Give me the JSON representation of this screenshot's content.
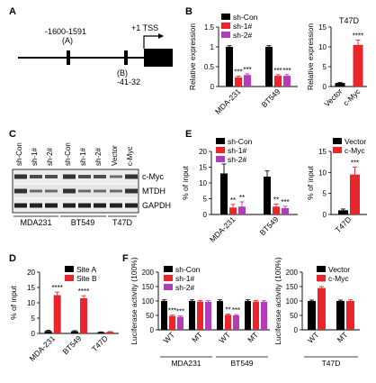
{
  "colors": {
    "black": "#000000",
    "red": "#e8262b",
    "purple": "#b33cb8",
    "gray": "#7f7f7f"
  },
  "panel_letters": [
    "A",
    "B",
    "C",
    "D",
    "E",
    "F"
  ],
  "diagram": {
    "site_a_pos": "-1600-1591",
    "site_a_label": "(A)",
    "site_b_label": "(B)",
    "site_b_pos": "-41-32",
    "tss_label": "+1 TSS"
  },
  "western": {
    "lane_labels": [
      "sh-Con",
      "sh-1#",
      "sh-2#",
      "sh-Con",
      "sh-1#",
      "sh-2#",
      "Vector",
      "c-Myc"
    ],
    "row_labels": [
      "c-Myc",
      "MTDH",
      "GAPDH"
    ],
    "group_labels": [
      "MDA231",
      "BT549",
      "T47D"
    ]
  },
  "chart_data": [
    {
      "id": "B-left",
      "type": "bar",
      "ylabel": "Relative expression",
      "ylim": [
        0,
        1.5
      ],
      "yticks": [
        0.0,
        0.5,
        1.0,
        1.5
      ],
      "categories": [
        "MDA-231",
        "BT549"
      ],
      "legend": [
        "sh-Con",
        "sh-1#",
        "sh-2#"
      ],
      "series": [
        {
          "name": "sh-Con",
          "color": "#000000",
          "values": [
            1.0,
            1.0
          ],
          "errors": [
            0.03,
            0.03
          ]
        },
        {
          "name": "sh-1#",
          "color": "#e8262b",
          "values": [
            0.23,
            0.27
          ],
          "errors": [
            0.03,
            0.03
          ]
        },
        {
          "name": "sh-2#",
          "color": "#b33cb8",
          "values": [
            0.29,
            0.27
          ],
          "errors": [
            0.03,
            0.03
          ]
        }
      ],
      "annotations": [
        [
          "",
          "***",
          "***"
        ],
        [
          "",
          "***",
          "***"
        ]
      ]
    },
    {
      "id": "B-right",
      "type": "bar",
      "title": "T47D",
      "ylabel": "Relative expression",
      "ylim": [
        0,
        15
      ],
      "yticks": [
        0,
        5,
        10,
        15
      ],
      "categories": [
        "Vector",
        "c-Myc"
      ],
      "values": [
        0.9,
        10.5
      ],
      "errors": [
        0.1,
        1.2
      ],
      "colors": [
        "#000000",
        "#e8262b"
      ],
      "annotations": [
        "",
        "****"
      ]
    },
    {
      "id": "E-left",
      "type": "bar",
      "ylabel": "% of input",
      "ylim": [
        0,
        20
      ],
      "yticks": [
        0,
        5,
        10,
        15,
        20
      ],
      "categories": [
        "MDA-231",
        "BT549"
      ],
      "legend": [
        "sh-Con",
        "sh-1#",
        "sh-2#"
      ],
      "series": [
        {
          "name": "sh-Con",
          "color": "#000000",
          "values": [
            13,
            12
          ],
          "errors": [
            3,
            1.8
          ]
        },
        {
          "name": "sh-1#",
          "color": "#e8262b",
          "values": [
            2.2,
            2.5
          ],
          "errors": [
            1,
            0.8
          ]
        },
        {
          "name": "sh-2#",
          "color": "#b33cb8",
          "values": [
            2.5,
            2.0
          ],
          "errors": [
            1.5,
            0.6
          ]
        }
      ],
      "annotations": [
        [
          "",
          "**",
          "**"
        ],
        [
          "",
          "**",
          "***"
        ]
      ]
    },
    {
      "id": "E-right",
      "type": "bar",
      "ylabel": "% of input",
      "ylim": [
        0,
        15
      ],
      "yticks": [
        0,
        5,
        10,
        15
      ],
      "categories": [
        "T47D"
      ],
      "legend": [
        "Vector",
        "c-Myc"
      ],
      "series": [
        {
          "name": "Vector",
          "color": "#000000",
          "values": [
            1.0
          ],
          "errors": [
            0.3
          ]
        },
        {
          "name": "c-Myc",
          "color": "#e8262b",
          "values": [
            9.5
          ],
          "errors": [
            1.8
          ]
        }
      ],
      "annotations": [
        [
          "",
          "***"
        ]
      ]
    },
    {
      "id": "D",
      "type": "bar",
      "ylabel": "% of input",
      "ylim": [
        0,
        20
      ],
      "yticks": [
        0,
        5,
        10,
        15,
        20
      ],
      "categories": [
        "MDA-231",
        "BT549",
        "T47D"
      ],
      "legend": [
        "Site A",
        "Site B"
      ],
      "series": [
        {
          "name": "Site A",
          "color": "#000000",
          "values": [
            0.8,
            0.7,
            0.4
          ],
          "errors": [
            0.2,
            0.2,
            0.1
          ]
        },
        {
          "name": "Site B",
          "color": "#e8262b",
          "values": [
            12.5,
            11.5,
            0.5
          ],
          "errors": [
            1.0,
            0.8,
            0.1
          ]
        }
      ],
      "annotations": [
        [
          "",
          "****"
        ],
        [
          "",
          "****"
        ],
        [
          "",
          ""
        ]
      ]
    },
    {
      "id": "F-left",
      "type": "bar",
      "ylabel": "Luciferase activity (100%)",
      "ylim": [
        0,
        200
      ],
      "yticks": [
        0,
        50,
        100,
        150,
        200
      ],
      "categories": [
        "WT",
        "MT",
        "WT",
        "MT"
      ],
      "groups": [
        "MDA231",
        "BT549"
      ],
      "legend": [
        "sh-Con",
        "sh-1#",
        "sh-2#"
      ],
      "series": [
        {
          "name": "sh-Con",
          "color": "#000000",
          "values": [
            100,
            100,
            100,
            100
          ],
          "errors": [
            4,
            4,
            4,
            4
          ]
        },
        {
          "name": "sh-1#",
          "color": "#e8262b",
          "values": [
            48,
            98,
            52,
            98
          ],
          "errors": [
            3,
            4,
            3,
            4
          ]
        },
        {
          "name": "sh-2#",
          "color": "#b33cb8",
          "values": [
            45,
            97,
            50,
            97
          ],
          "errors": [
            3,
            4,
            3,
            4
          ]
        }
      ],
      "annotations": [
        [
          "",
          "***",
          "***"
        ],
        [
          "",
          "",
          ""
        ],
        [
          "",
          "**",
          "***"
        ],
        [
          "",
          "",
          ""
        ]
      ]
    },
    {
      "id": "F-right",
      "type": "bar",
      "ylabel": "Luciferase activity (100%)",
      "ylim": [
        0,
        200
      ],
      "yticks": [
        0,
        50,
        100,
        150,
        200
      ],
      "categories": [
        "WT",
        "MT"
      ],
      "groups": [
        "T47D"
      ],
      "legend": [
        "Vector",
        "c-Myc"
      ],
      "series": [
        {
          "name": "Vector",
          "color": "#000000",
          "values": [
            100,
            100
          ],
          "errors": [
            3,
            3
          ]
        },
        {
          "name": "c-Myc",
          "color": "#e8262b",
          "values": [
            145,
            100
          ],
          "errors": [
            5,
            4
          ]
        }
      ],
      "annotations": [
        [
          "",
          "***"
        ],
        [
          "",
          ""
        ]
      ]
    }
  ]
}
